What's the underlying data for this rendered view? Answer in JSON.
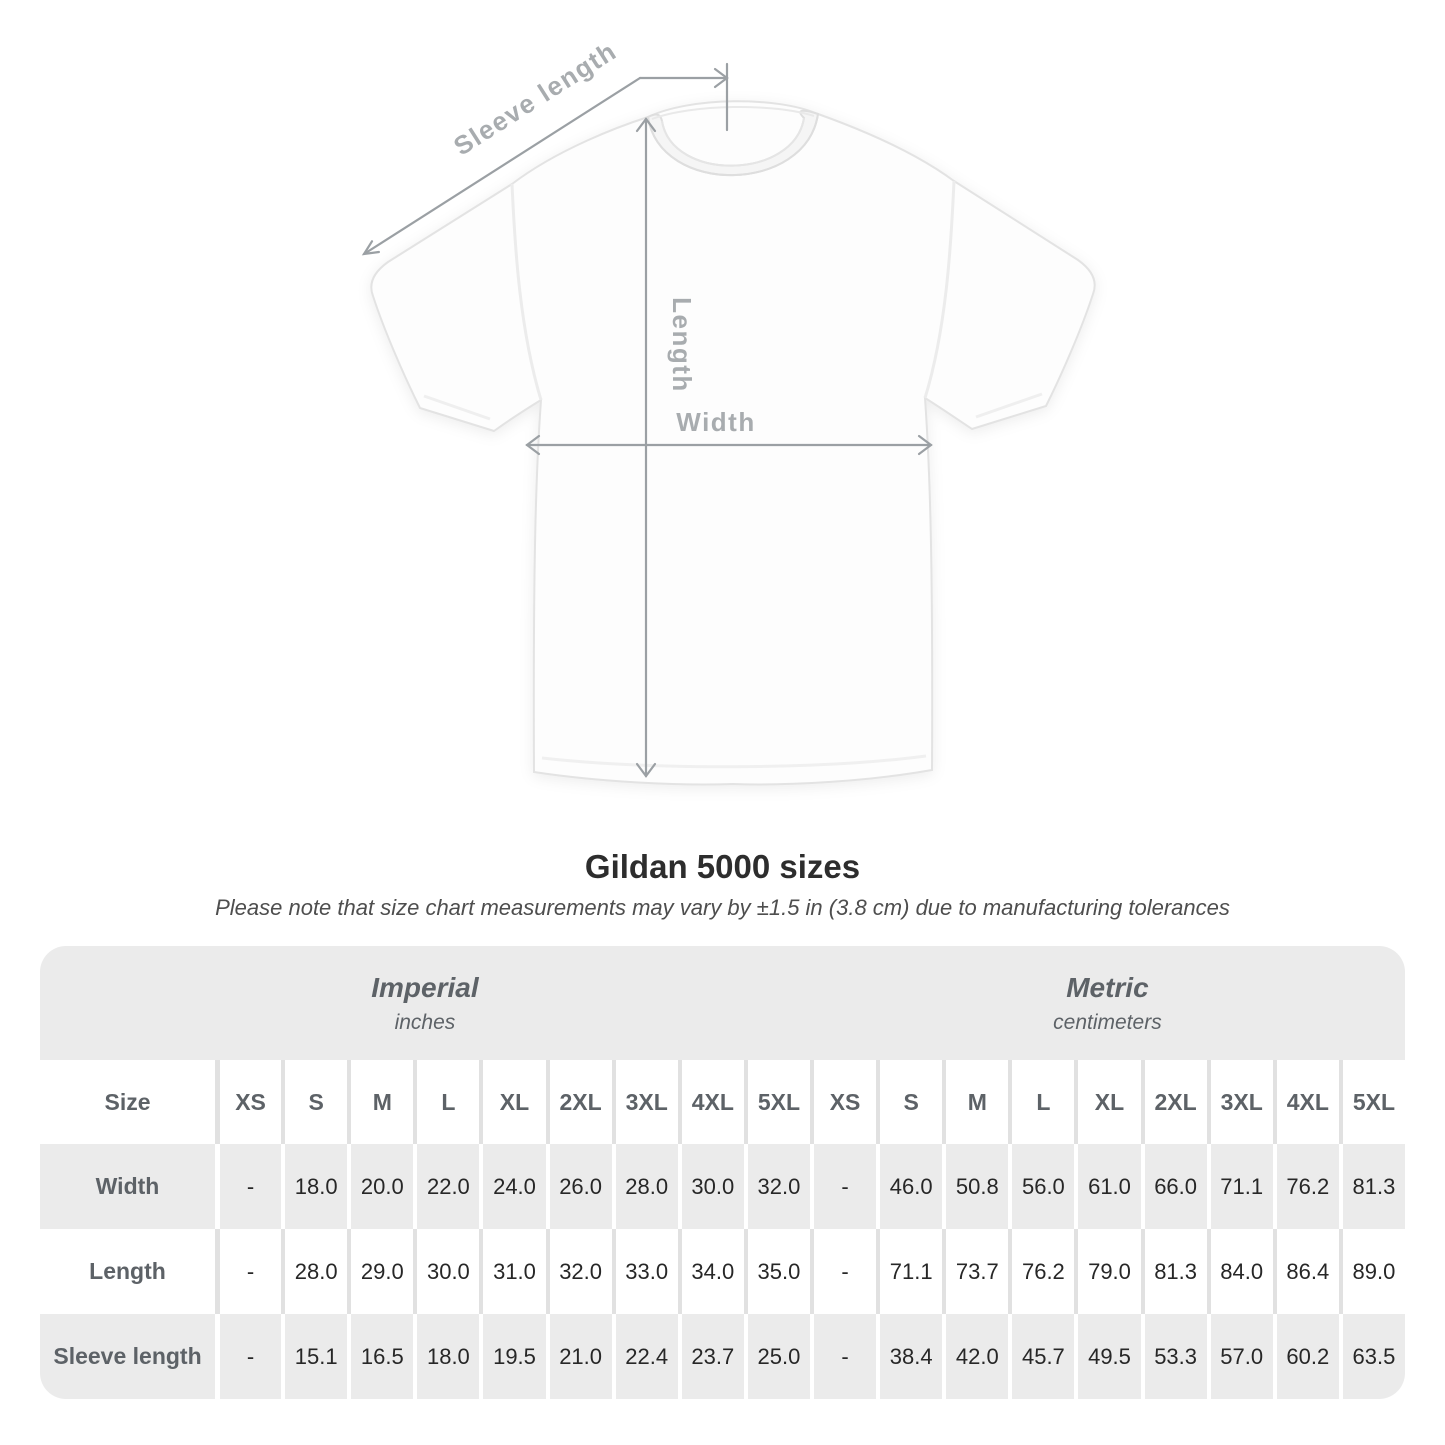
{
  "diagram": {
    "labels": {
      "sleeve_length": "Sleeve length",
      "length": "Length",
      "width": "Width"
    },
    "arrow_color": "#9ba0a4",
    "label_color": "#a8acaf",
    "shirt_color": "#fdfdfd"
  },
  "heading": {
    "title": "Gildan 5000 sizes",
    "subtitle": "Please note that size chart measurements may vary by ±1.5 in (3.8 cm) due to manufacturing tolerances"
  },
  "table": {
    "groups": [
      {
        "name": "Imperial",
        "unit": "inches"
      },
      {
        "name": "Metric",
        "unit": "centimeters"
      }
    ],
    "size_header": "Size",
    "sizes": [
      "XS",
      "S",
      "M",
      "L",
      "XL",
      "2XL",
      "3XL",
      "4XL",
      "5XL"
    ],
    "rows": [
      {
        "label": "Width",
        "imperial": [
          "-",
          "18.0",
          "20.0",
          "22.0",
          "24.0",
          "26.0",
          "28.0",
          "30.0",
          "32.0"
        ],
        "metric": [
          "-",
          "46.0",
          "50.8",
          "56.0",
          "61.0",
          "66.0",
          "71.1",
          "76.2",
          "81.3"
        ]
      },
      {
        "label": "Length",
        "imperial": [
          "-",
          "28.0",
          "29.0",
          "30.0",
          "31.0",
          "32.0",
          "33.0",
          "34.0",
          "35.0"
        ],
        "metric": [
          "-",
          "71.1",
          "73.7",
          "76.2",
          "79.0",
          "81.3",
          "84.0",
          "86.4",
          "89.0"
        ]
      },
      {
        "label": "Sleeve length",
        "imperial": [
          "-",
          "15.1",
          "16.5",
          "18.0",
          "19.5",
          "21.0",
          "22.4",
          "23.7",
          "25.0"
        ],
        "metric": [
          "-",
          "38.4",
          "42.0",
          "45.7",
          "49.5",
          "53.3",
          "57.0",
          "60.2",
          "63.5"
        ]
      }
    ]
  },
  "chart_data": {
    "type": "table",
    "title": "Gildan 5000 sizes",
    "note": "Please note that size chart measurements may vary by ±1.5 in (3.8 cm) due to manufacturing tolerances",
    "unit_groups": [
      "Imperial (inches)",
      "Metric (centimeters)"
    ],
    "columns": [
      "Size",
      "XS",
      "S",
      "M",
      "L",
      "XL",
      "2XL",
      "3XL",
      "4XL",
      "5XL",
      "XS",
      "S",
      "M",
      "L",
      "XL",
      "2XL",
      "3XL",
      "4XL",
      "5XL"
    ],
    "rows": [
      [
        "Width",
        "-",
        18.0,
        20.0,
        22.0,
        24.0,
        26.0,
        28.0,
        30.0,
        32.0,
        "-",
        46.0,
        50.8,
        56.0,
        61.0,
        66.0,
        71.1,
        76.2,
        81.3
      ],
      [
        "Length",
        "-",
        28.0,
        29.0,
        30.0,
        31.0,
        32.0,
        33.0,
        34.0,
        35.0,
        "-",
        71.1,
        73.7,
        76.2,
        79.0,
        81.3,
        84.0,
        86.4,
        89.0
      ],
      [
        "Sleeve length",
        "-",
        15.1,
        16.5,
        18.0,
        19.5,
        21.0,
        22.4,
        23.7,
        25.0,
        "-",
        38.4,
        42.0,
        45.7,
        49.5,
        53.3,
        57.0,
        60.2,
        63.5
      ]
    ]
  },
  "colors": {
    "band_gray": "#ebebeb",
    "row_gray": "#ebebeb",
    "separator_on_white": "#e1e1e1",
    "separator_on_gray": "#ffffff",
    "header_text": "#5d6267",
    "value_text": "#272727",
    "title_text": "#2d2d2d"
  }
}
